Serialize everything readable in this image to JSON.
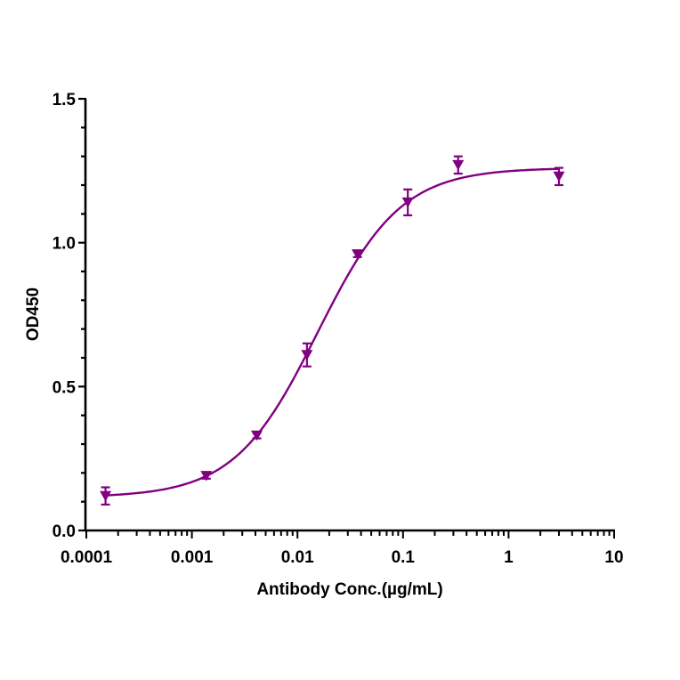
{
  "chart_data": {
    "type": "scatter",
    "title": "",
    "xlabel": "Antibody Conc.(µg/mL)",
    "ylabel": "OD450",
    "x_scale": "log",
    "xlim": [
      0.0001,
      10
    ],
    "ylim": [
      0.0,
      1.5
    ],
    "x_ticks": [
      "0.0001",
      "0.001",
      "0.01",
      "0.1",
      "1",
      "10"
    ],
    "y_ticks": [
      "0.0",
      "0.5",
      "1.0",
      "1.5"
    ],
    "y_minor_step": 0.1,
    "grid": false,
    "legend": null,
    "color": "#800080",
    "marker": "triangle-down",
    "series": [
      {
        "name": "OD450",
        "x": [
          0.000152,
          0.00137,
          0.00412,
          0.0123,
          0.037,
          0.111,
          0.333,
          3.0
        ],
        "y": [
          0.12,
          0.19,
          0.33,
          0.61,
          0.96,
          1.14,
          1.27,
          1.23
        ],
        "error": [
          0.03,
          0.01,
          0.01,
          0.04,
          0.01,
          0.045,
          0.03,
          0.03
        ]
      }
    ],
    "fit": {
      "model": "4PL",
      "bottom": 0.115,
      "top": 1.26,
      "ec50": 0.0155,
      "hill": 1.1,
      "x_range": [
        0.000152,
        3.0
      ]
    }
  }
}
